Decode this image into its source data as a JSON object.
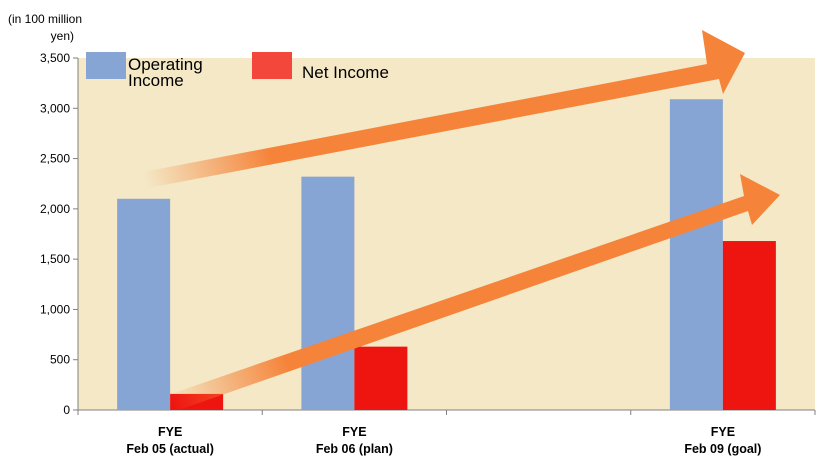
{
  "chart_data": {
    "type": "bar",
    "unit_label": [
      "(in 100 million",
      "yen)"
    ],
    "categories": [
      [
        "FYE",
        "Feb 05 (actual)"
      ],
      [
        "FYE",
        "Feb 06 (plan)"
      ],
      [
        "",
        ""
      ],
      [
        "FYE",
        "Feb 09 (goal)"
      ]
    ],
    "series": [
      {
        "name": "Operating Income",
        "legend_lines": [
          "Operating",
          "Income"
        ],
        "color": "#86a5d4",
        "values": [
          2100,
          2320,
          null,
          3090
        ]
      },
      {
        "name": "Net Income",
        "legend_lines": [
          "Net Income"
        ],
        "color": "#ee1410",
        "values": [
          160,
          630,
          null,
          1680
        ]
      }
    ],
    "ylim": [
      0,
      3500
    ],
    "yticks": [
      0,
      500,
      1000,
      1500,
      2000,
      2500,
      3000,
      3500
    ],
    "ytick_labels": [
      "0",
      "500",
      "1,000",
      "1,500",
      "2,000",
      "2,500",
      "3,000",
      "3,500"
    ],
    "plot_background": "#f4e8c6",
    "arrow_color": "#f5843a",
    "legend_swatch_colors": [
      "#86a5d4",
      "#f2473a"
    ],
    "grid": false,
    "legend_position": "top-left"
  }
}
